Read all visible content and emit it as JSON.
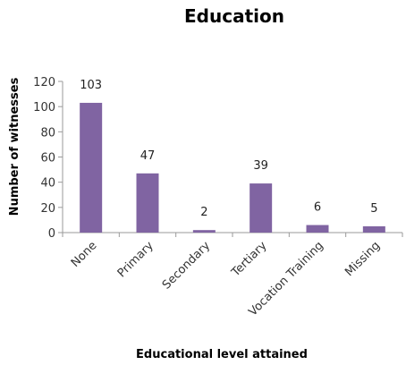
{
  "chart_data": {
    "type": "bar",
    "title": "Education",
    "xlabel": "Educational level attained",
    "ylabel": "Number of witnesses",
    "categories": [
      "None",
      "Primary",
      "Secondary",
      "Tertiary",
      "Vocation Training",
      "Missing"
    ],
    "values": [
      103,
      47,
      2,
      39,
      6,
      5
    ],
    "data_labels": [
      "103",
      "47",
      "2",
      "39",
      "6",
      "5"
    ],
    "ylim": [
      0,
      120
    ],
    "yticks": [
      0,
      20,
      40,
      60,
      80,
      100,
      120
    ],
    "grid": false,
    "legend": "none",
    "bar_color": "#8064a2"
  }
}
